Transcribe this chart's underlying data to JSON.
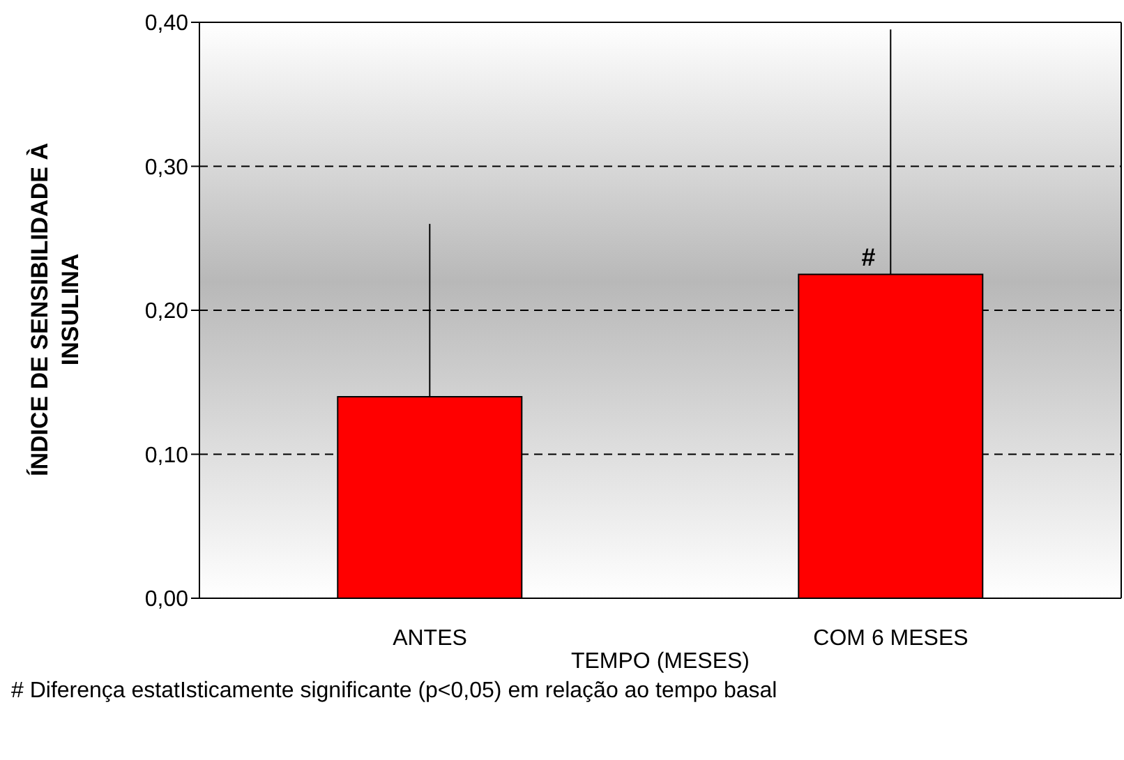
{
  "chart_data": {
    "type": "bar",
    "xlabel": "TEMPO (MESES)",
    "ylabel": "ÍNDICE DE SENSIBILIDADE À INSULINA",
    "categories": [
      "ANTES",
      "COM 6 MESES"
    ],
    "values": [
      0.14,
      0.225
    ],
    "color": "#ff0000",
    "errors": [
      [
        0.14,
        0.26
      ],
      [
        0.225,
        0.395
      ]
    ],
    "ylim": [
      0,
      0.4
    ],
    "yticks": [
      {
        "value": 0,
        "label": "0,00"
      },
      {
        "value": 0.1,
        "label": "0,10"
      },
      {
        "value": 0.2,
        "label": "0,20"
      },
      {
        "value": 0.3,
        "label": "0,30"
      },
      {
        "value": 0.4,
        "label": "0,40"
      }
    ],
    "grid": "y",
    "annotations": [
      {
        "text": "#",
        "x": "COM 6 MESES",
        "y": 0.225
      },
      "# Diferença estatIsticamente significante (p<0,05) em relação ao tempo basal"
    ]
  }
}
